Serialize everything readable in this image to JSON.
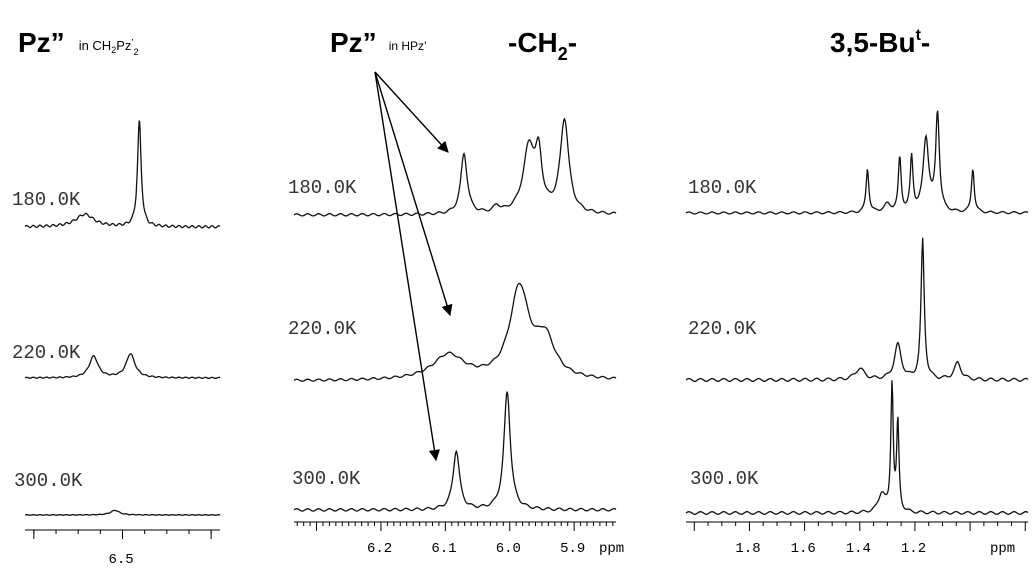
{
  "headers": {
    "panel1_main": "Pz”",
    "panel1_sub": "in CH",
    "panel1_sub2": "2",
    "panel1_sub3": "Pz",
    "panel1_sub4": "’",
    "panel1_sub5": "2",
    "panel2_main": "Pz”",
    "panel2_sub": "in HPz’",
    "panel2_ch2": "-CH",
    "panel2_ch2_sub": "2",
    "panel2_ch2_end": "-",
    "panel3_main": "3,5-Bu",
    "panel3_sup": "t",
    "panel3_end": "-"
  },
  "chart_data": [
    {
      "type": "line",
      "panel": "Pz'' in CH2Pz'2",
      "xlabel": "",
      "x_reversed": true,
      "xlim": [
        6.72,
        6.28
      ],
      "x_ticks": [
        "6.5"
      ],
      "series": [
        {
          "name": "180.0K",
          "peaks": [
            {
              "ppm": 6.585,
              "height": 0.12,
              "width": 0.025
            },
            {
              "ppm": 6.462,
              "height": 1.0,
              "width": 0.005
            }
          ]
        },
        {
          "name": "220.0K",
          "peaks": [
            {
              "ppm": 6.565,
              "height": 0.45,
              "width": 0.012
            },
            {
              "ppm": 6.482,
              "height": 0.5,
              "width": 0.012
            }
          ]
        },
        {
          "name": "300.0K",
          "peaks": [
            {
              "ppm": 6.517,
              "height": 0.18,
              "width": 0.012
            }
          ]
        }
      ]
    },
    {
      "type": "line",
      "panel": "Pz'' in HPz' / -CH2-",
      "xlabel": "ppm",
      "x_reversed": true,
      "xlim": [
        6.335,
        5.835
      ],
      "x_ticks": [
        "6.2",
        "6.1",
        "6.0",
        "5.9"
      ],
      "series": [
        {
          "name": "180.0K",
          "peaks": [
            {
              "ppm": 6.071,
              "height": 0.55,
              "width": 0.006
            },
            {
              "ppm": 6.02,
              "height": 0.06,
              "width": 0.006
            },
            {
              "ppm": 5.97,
              "height": 0.6,
              "width": 0.011
            },
            {
              "ppm": 5.955,
              "height": 0.45,
              "width": 0.006
            },
            {
              "ppm": 5.915,
              "height": 0.85,
              "width": 0.008
            }
          ]
        },
        {
          "name": "220.0K",
          "peaks": [
            {
              "ppm": 6.095,
              "height": 0.25,
              "width": 0.03
            },
            {
              "ppm": 5.985,
              "height": 0.9,
              "width": 0.018
            },
            {
              "ppm": 5.945,
              "height": 0.38,
              "width": 0.018
            }
          ]
        },
        {
          "name": "300.0K",
          "peaks": [
            {
              "ppm": 6.083,
              "height": 0.5,
              "width": 0.006
            },
            {
              "ppm": 6.004,
              "height": 1.0,
              "width": 0.006
            }
          ]
        }
      ]
    },
    {
      "type": "line",
      "panel": "3,5-But-",
      "xlabel": "ppm",
      "x_reversed": true,
      "xlim": [
        2.03,
        0.79
      ],
      "x_ticks": [
        "1.8",
        "1.6",
        "1.4",
        "1.2"
      ],
      "series": [
        {
          "name": "180.0K",
          "peaks": [
            {
              "ppm": 1.372,
              "height": 0.45,
              "width": 0.006
            },
            {
              "ppm": 1.3,
              "height": 0.08,
              "width": 0.015
            },
            {
              "ppm": 1.255,
              "height": 0.55,
              "width": 0.006
            },
            {
              "ppm": 1.212,
              "height": 0.55,
              "width": 0.006
            },
            {
              "ppm": 1.16,
              "height": 0.75,
              "width": 0.012
            },
            {
              "ppm": 1.118,
              "height": 1.0,
              "width": 0.008
            },
            {
              "ppm": 0.99,
              "height": 0.45,
              "width": 0.006
            }
          ]
        },
        {
          "name": "220.0K",
          "peaks": [
            {
              "ppm": 1.4,
              "height": 0.08,
              "width": 0.02
            },
            {
              "ppm": 1.262,
              "height": 0.25,
              "width": 0.015
            },
            {
              "ppm": 1.172,
              "height": 1.0,
              "width": 0.007
            },
            {
              "ppm": 1.045,
              "height": 0.12,
              "width": 0.015
            }
          ]
        },
        {
          "name": "300.0K",
          "peaks": [
            {
              "ppm": 1.32,
              "height": 0.15,
              "width": 0.015
            },
            {
              "ppm": 1.283,
              "height": 1.0,
              "width": 0.005
            },
            {
              "ppm": 1.262,
              "height": 0.7,
              "width": 0.005
            }
          ]
        }
      ]
    }
  ]
}
